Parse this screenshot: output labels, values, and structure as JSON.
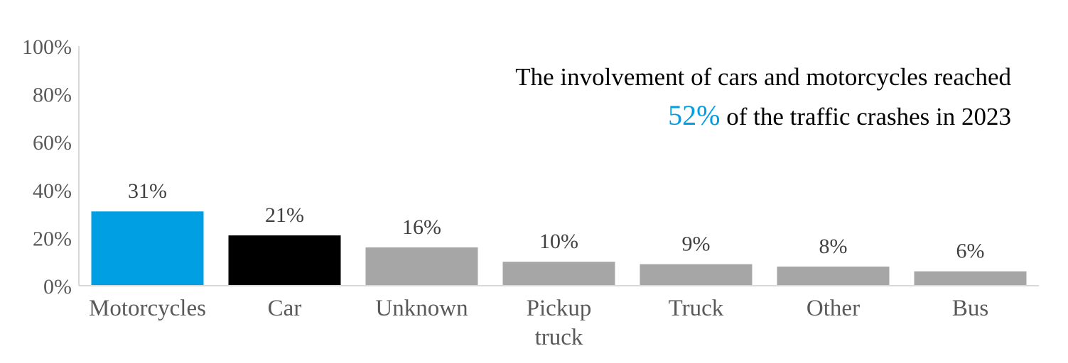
{
  "chart_data": {
    "type": "bar",
    "categories": [
      "Motorcycles",
      "Car",
      "Unknown",
      "Pickup truck",
      "Truck",
      "Other",
      "Bus"
    ],
    "category_lines": [
      [
        "Motorcycles"
      ],
      [
        "Car"
      ],
      [
        "Unknown"
      ],
      [
        "Pickup",
        "truck"
      ],
      [
        "Truck"
      ],
      [
        "Other"
      ],
      [
        "Bus"
      ]
    ],
    "values": [
      31,
      21,
      16,
      10,
      9,
      8,
      6
    ],
    "data_labels": [
      "31%",
      "21%",
      "16%",
      "10%",
      "9%",
      "8%",
      "6%"
    ],
    "bar_colors": [
      "#009FE3",
      "#000000",
      "#A6A6A6",
      "#A6A6A6",
      "#A6A6A6",
      "#A6A6A6",
      "#A6A6A6"
    ],
    "ylim": [
      0,
      100
    ],
    "yticks": [
      0,
      20,
      40,
      60,
      80,
      100
    ],
    "ytick_labels": [
      "0%",
      "20%",
      "40%",
      "60%",
      "80%",
      "100%"
    ],
    "title": "",
    "xlabel": "",
    "ylabel": "",
    "grid": false,
    "legend": "none"
  },
  "annotation": {
    "line1": "The involvement of cars and motorcycles reached",
    "highlight": "52%",
    "line2_rest": " of the traffic crashes in 2023",
    "highlight_color": "#009FE3"
  },
  "colors": {
    "axis": "#D9D9D9",
    "tick_text": "#595959",
    "label_text": "#404040"
  }
}
